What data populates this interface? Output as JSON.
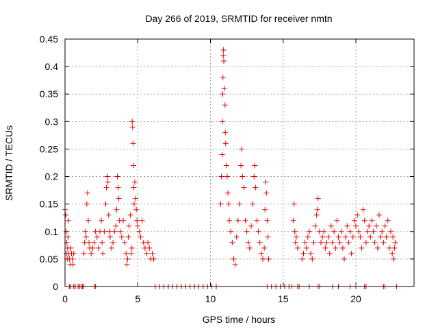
{
  "chart_data": {
    "type": "scatter",
    "title": "Day 266 of 2019, SRMTID for receiver nmtn",
    "xlabel": "GPS time / hours",
    "ylabel": "SRMTID / TECUs",
    "xlim": [
      0,
      24
    ],
    "ylim": [
      0,
      0.45
    ],
    "xticks": [
      0,
      5,
      10,
      15,
      20
    ],
    "yticks": [
      0,
      0.05,
      0.1,
      0.15,
      0.2,
      0.25,
      0.3,
      0.35,
      0.4,
      0.45
    ],
    "ytick_labels": [
      "0",
      "0.05",
      "0.1",
      "0.15",
      "0.2",
      "0.25",
      "0.3",
      "0.35",
      "0.4",
      "0.45"
    ],
    "grid": true,
    "marker": "+",
    "marker_color": "#e00000",
    "series": [
      {
        "name": "SRMTID",
        "points": [
          [
            0.0,
            0.14
          ],
          [
            0.05,
            0.13
          ],
          [
            0.08,
            0.1
          ],
          [
            0.1,
            0.06
          ],
          [
            0.12,
            0.08
          ],
          [
            0.15,
            0.05
          ],
          [
            0.18,
            0.07
          ],
          [
            0.2,
            0.09
          ],
          [
            0.22,
            0.12
          ],
          [
            0.25,
            0.06
          ],
          [
            0.3,
            0.05
          ],
          [
            0.35,
            0.04
          ],
          [
            0.4,
            0.07
          ],
          [
            0.45,
            0.06
          ],
          [
            0.5,
            0.05
          ],
          [
            0.55,
            0.04
          ],
          [
            0.6,
            0.06
          ],
          [
            1.3,
            0.06
          ],
          [
            1.35,
            0.08
          ],
          [
            1.4,
            0.1
          ],
          [
            1.45,
            0.09
          ],
          [
            1.5,
            0.15
          ],
          [
            1.55,
            0.17
          ],
          [
            1.6,
            0.12
          ],
          [
            1.65,
            0.08
          ],
          [
            1.7,
            0.07
          ],
          [
            1.8,
            0.06
          ],
          [
            1.9,
            0.07
          ],
          [
            2.0,
            0.08
          ],
          [
            2.1,
            0.1
          ],
          [
            2.2,
            0.09
          ],
          [
            2.3,
            0.07
          ],
          [
            2.4,
            0.1
          ],
          [
            2.5,
            0.12
          ],
          [
            2.55,
            0.08
          ],
          [
            2.6,
            0.06
          ],
          [
            2.7,
            0.1
          ],
          [
            2.8,
            0.15
          ],
          [
            2.85,
            0.18
          ],
          [
            2.9,
            0.2
          ],
          [
            2.95,
            0.19
          ],
          [
            3.0,
            0.13
          ],
          [
            3.05,
            0.1
          ],
          [
            3.1,
            0.09
          ],
          [
            3.2,
            0.07
          ],
          [
            3.3,
            0.08
          ],
          [
            3.4,
            0.1
          ],
          [
            3.5,
            0.11
          ],
          [
            3.55,
            0.14
          ],
          [
            3.6,
            0.2
          ],
          [
            3.65,
            0.18
          ],
          [
            3.7,
            0.16
          ],
          [
            3.75,
            0.12
          ],
          [
            3.8,
            0.1
          ],
          [
            3.9,
            0.09
          ],
          [
            4.0,
            0.12
          ],
          [
            4.1,
            0.08
          ],
          [
            4.2,
            0.06
          ],
          [
            4.25,
            0.04
          ],
          [
            4.3,
            0.05
          ],
          [
            4.35,
            0.09
          ],
          [
            4.4,
            0.11
          ],
          [
            4.5,
            0.13
          ],
          [
            4.55,
            0.06
          ],
          [
            4.6,
            0.07
          ],
          [
            4.62,
            0.3
          ],
          [
            4.65,
            0.29
          ],
          [
            4.68,
            0.26
          ],
          [
            4.7,
            0.22
          ],
          [
            4.72,
            0.18
          ],
          [
            4.75,
            0.15
          ],
          [
            4.8,
            0.19
          ],
          [
            4.85,
            0.16
          ],
          [
            4.9,
            0.14
          ],
          [
            4.95,
            0.12
          ],
          [
            5.0,
            0.11
          ],
          [
            5.1,
            0.1
          ],
          [
            5.2,
            0.09
          ],
          [
            5.3,
            0.12
          ],
          [
            5.4,
            0.08
          ],
          [
            5.5,
            0.07
          ],
          [
            5.6,
            0.06
          ],
          [
            5.7,
            0.08
          ],
          [
            5.8,
            0.07
          ],
          [
            5.9,
            0.05
          ],
          [
            6.0,
            0.06
          ],
          [
            6.1,
            0.05
          ],
          [
            10.7,
            0.15
          ],
          [
            10.75,
            0.2
          ],
          [
            10.8,
            0.24
          ],
          [
            10.82,
            0.3
          ],
          [
            10.84,
            0.35
          ],
          [
            10.86,
            0.38
          ],
          [
            10.88,
            0.42
          ],
          [
            10.9,
            0.43
          ],
          [
            10.92,
            0.41
          ],
          [
            10.95,
            0.36
          ],
          [
            11.0,
            0.33
          ],
          [
            11.02,
            0.28
          ],
          [
            11.05,
            0.26
          ],
          [
            11.1,
            0.22
          ],
          [
            11.15,
            0.2
          ],
          [
            11.2,
            0.17
          ],
          [
            11.25,
            0.15
          ],
          [
            11.3,
            0.12
          ],
          [
            11.4,
            0.1
          ],
          [
            11.5,
            0.08
          ],
          [
            11.6,
            0.05
          ],
          [
            11.7,
            0.04
          ],
          [
            11.8,
            0.09
          ],
          [
            11.9,
            0.12
          ],
          [
            12.0,
            0.15
          ],
          [
            12.1,
            0.22
          ],
          [
            12.15,
            0.25
          ],
          [
            12.2,
            0.2
          ],
          [
            12.3,
            0.18
          ],
          [
            12.4,
            0.12
          ],
          [
            12.5,
            0.1
          ],
          [
            12.6,
            0.08
          ],
          [
            12.7,
            0.07
          ],
          [
            12.8,
            0.11
          ],
          [
            12.9,
            0.15
          ],
          [
            13.0,
            0.2
          ],
          [
            13.05,
            0.22
          ],
          [
            13.1,
            0.18
          ],
          [
            13.2,
            0.12
          ],
          [
            13.3,
            0.1
          ],
          [
            13.4,
            0.08
          ],
          [
            13.5,
            0.06
          ],
          [
            13.6,
            0.05
          ],
          [
            13.7,
            0.07
          ],
          [
            13.75,
            0.14
          ],
          [
            13.8,
            0.19
          ],
          [
            13.85,
            0.17
          ],
          [
            13.9,
            0.12
          ],
          [
            13.95,
            0.09
          ],
          [
            14.0,
            0.05
          ],
          [
            15.7,
            0.12
          ],
          [
            15.75,
            0.15
          ],
          [
            15.8,
            0.1
          ],
          [
            15.85,
            0.08
          ],
          [
            15.9,
            0.09
          ],
          [
            16.0,
            0.07
          ],
          [
            16.3,
            0.05
          ],
          [
            16.4,
            0.06
          ],
          [
            16.5,
            0.08
          ],
          [
            16.6,
            0.07
          ],
          [
            16.7,
            0.09
          ],
          [
            16.8,
            0.1
          ],
          [
            16.9,
            0.06
          ],
          [
            17.0,
            0.05
          ],
          [
            17.1,
            0.08
          ],
          [
            17.2,
            0.11
          ],
          [
            17.3,
            0.13
          ],
          [
            17.35,
            0.14
          ],
          [
            17.4,
            0.16
          ],
          [
            17.5,
            0.1
          ],
          [
            17.6,
            0.08
          ],
          [
            17.7,
            0.09
          ],
          [
            17.8,
            0.1
          ],
          [
            17.9,
            0.07
          ],
          [
            18.0,
            0.08
          ],
          [
            18.1,
            0.09
          ],
          [
            18.2,
            0.06
          ],
          [
            18.3,
            0.11
          ],
          [
            18.4,
            0.08
          ],
          [
            18.5,
            0.1
          ],
          [
            18.6,
            0.07
          ],
          [
            18.7,
            0.12
          ],
          [
            18.8,
            0.09
          ],
          [
            18.9,
            0.08
          ],
          [
            19.0,
            0.1
          ],
          [
            19.1,
            0.07
          ],
          [
            19.2,
            0.05
          ],
          [
            19.3,
            0.09
          ],
          [
            19.4,
            0.11
          ],
          [
            19.5,
            0.08
          ],
          [
            19.6,
            0.1
          ],
          [
            19.7,
            0.06
          ],
          [
            19.8,
            0.09
          ],
          [
            19.9,
            0.12
          ],
          [
            20.0,
            0.11
          ],
          [
            20.1,
            0.13
          ],
          [
            20.2,
            0.1
          ],
          [
            20.3,
            0.09
          ],
          [
            20.4,
            0.07
          ],
          [
            20.5,
            0.14
          ],
          [
            20.6,
            0.12
          ],
          [
            20.7,
            0.08
          ],
          [
            20.8,
            0.1
          ],
          [
            20.9,
            0.11
          ],
          [
            21.0,
            0.09
          ],
          [
            21.1,
            0.12
          ],
          [
            21.2,
            0.1
          ],
          [
            21.3,
            0.08
          ],
          [
            21.4,
            0.11
          ],
          [
            21.5,
            0.07
          ],
          [
            21.6,
            0.13
          ],
          [
            21.7,
            0.09
          ],
          [
            21.8,
            0.1
          ],
          [
            21.9,
            0.08
          ],
          [
            22.0,
            0.11
          ],
          [
            22.1,
            0.09
          ],
          [
            22.2,
            0.12
          ],
          [
            22.3,
            0.07
          ],
          [
            22.4,
            0.1
          ],
          [
            22.5,
            0.06
          ],
          [
            22.55,
            0.09
          ],
          [
            22.6,
            0.05
          ],
          [
            22.65,
            0.07
          ],
          [
            22.7,
            0.08
          ],
          [
            0.3,
            0.0
          ],
          [
            0.4,
            0.0
          ],
          [
            0.6,
            0.0
          ],
          [
            0.7,
            0.0
          ],
          [
            0.9,
            0.0
          ],
          [
            1.0,
            0.0
          ],
          [
            1.1,
            0.0
          ],
          [
            1.2,
            0.0
          ],
          [
            1.3,
            0.0
          ],
          [
            2.0,
            0.0
          ],
          [
            2.1,
            0.0
          ],
          [
            6.2,
            0.0
          ],
          [
            6.5,
            0.0
          ],
          [
            6.8,
            0.0
          ],
          [
            7.1,
            0.0
          ],
          [
            7.4,
            0.0
          ],
          [
            7.7,
            0.0
          ],
          [
            8.0,
            0.0
          ],
          [
            8.3,
            0.0
          ],
          [
            8.6,
            0.0
          ],
          [
            8.9,
            0.0
          ],
          [
            9.2,
            0.0
          ],
          [
            9.5,
            0.0
          ],
          [
            9.8,
            0.0
          ],
          [
            10.1,
            0.0
          ],
          [
            10.4,
            0.0
          ],
          [
            13.9,
            0.0
          ],
          [
            14.2,
            0.0
          ],
          [
            14.5,
            0.0
          ],
          [
            14.8,
            0.0
          ],
          [
            15.1,
            0.0
          ],
          [
            15.4,
            0.0
          ],
          [
            15.6,
            0.0
          ],
          [
            16.0,
            0.0
          ],
          [
            16.1,
            0.0
          ],
          [
            16.8,
            0.0
          ],
          [
            17.4,
            0.0
          ],
          [
            17.5,
            0.0
          ],
          [
            18.4,
            0.0
          ],
          [
            18.8,
            0.0
          ],
          [
            19.6,
            0.0
          ],
          [
            20.0,
            0.0
          ],
          [
            20.6,
            0.0
          ],
          [
            20.7,
            0.0
          ],
          [
            21.9,
            0.0
          ],
          [
            22.0,
            0.0
          ],
          [
            22.8,
            0.0
          ]
        ]
      }
    ]
  }
}
